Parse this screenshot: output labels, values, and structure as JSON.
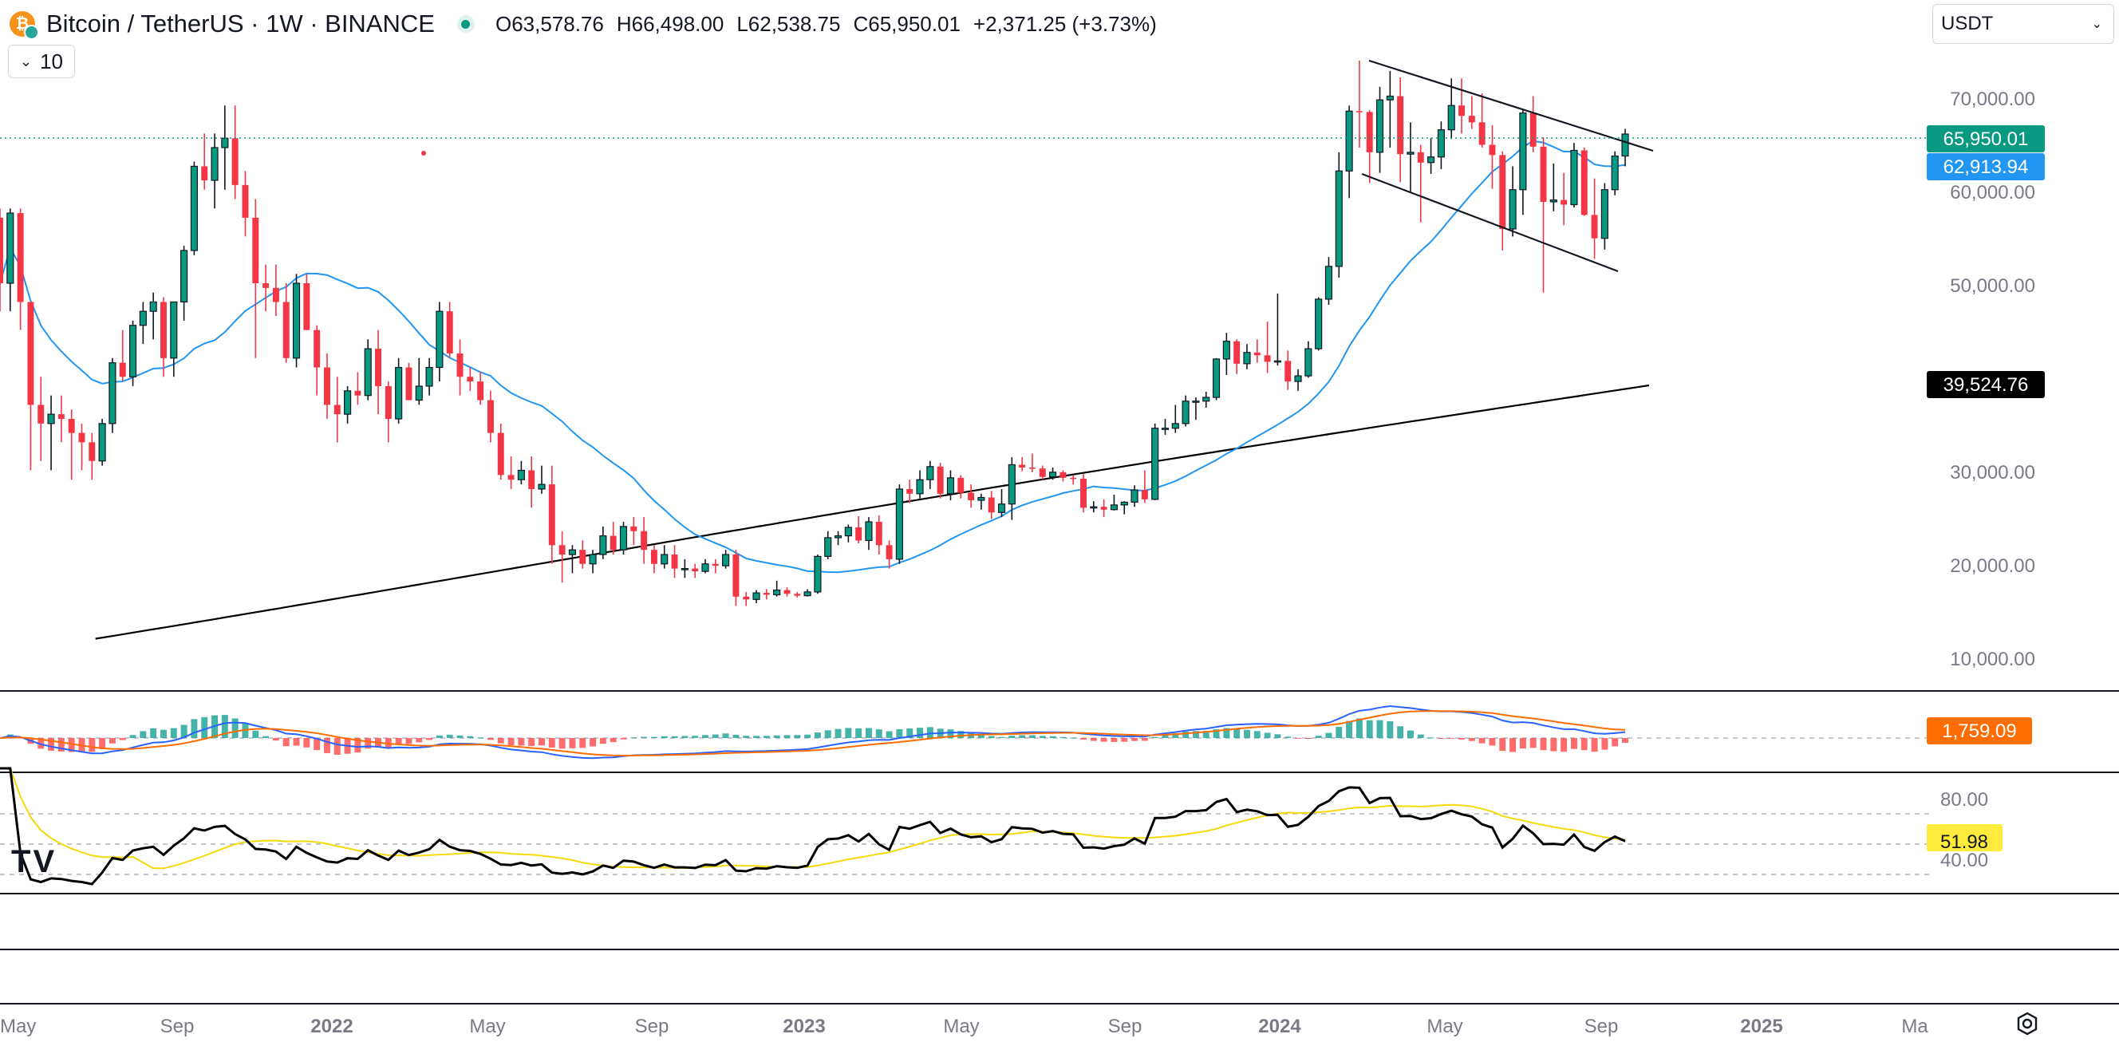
{
  "header": {
    "symbol_title": "Bitcoin / TetherUS · 1W · BINANCE",
    "logo_glyph": "₿",
    "ohlc": [
      {
        "label": "O",
        "value": "63,578.76"
      },
      {
        "label": "H",
        "value": "66,498.00"
      },
      {
        "label": "L",
        "value": "62,538.75"
      },
      {
        "label": "C",
        "value": "65,950.01"
      }
    ],
    "change": "+2,371.25 (+3.73%)",
    "indicator_count": "10",
    "currency": "USDT"
  },
  "badges": {
    "last_price": "65,950.01",
    "sma20": "62,913.94",
    "sma200": "39,524.76",
    "macd": "1,759.09",
    "rsi": "51.98"
  },
  "colors": {
    "up": "#089981",
    "down": "#f23645",
    "sma20": "#2196f3",
    "sma200": "#000000",
    "macd_line": "#2962ff",
    "signal_line": "#ff6d00",
    "rsi_line": "#000000",
    "rsi_ma": "#f5d90a",
    "last_badge": "#089981",
    "sma20_badge": "#2196f3",
    "macd_badge": "#ff6d00",
    "rsi_badge": "#ffeb3b"
  },
  "chart_data": {
    "type": "candlestick",
    "symbol": "BTC/USDT",
    "interval": "1W",
    "price_axis": {
      "ticks": [
        "70,000.00",
        "60,000.00",
        "50,000.00",
        "30,000.00",
        "20,000.00",
        "10,000.00"
      ],
      "ylim": [
        5000,
        76000
      ]
    },
    "time_axis": [
      "May",
      "Sep",
      "2022",
      "May",
      "Sep",
      "2023",
      "May",
      "Sep",
      "2024",
      "May",
      "Sep",
      "2025",
      "Ma"
    ],
    "candles_approx": [
      [
        57000,
        58000,
        47000,
        50000
      ],
      [
        50000,
        58000,
        47000,
        57500
      ],
      [
        57500,
        58000,
        45000,
        48000
      ],
      [
        48000,
        48000,
        30000,
        37000
      ],
      [
        37000,
        40000,
        31000,
        35000
      ],
      [
        35000,
        38000,
        30000,
        36000
      ],
      [
        36000,
        38000,
        33000,
        35500
      ],
      [
        35500,
        36500,
        29000,
        34000
      ],
      [
        34000,
        35000,
        30000,
        33000
      ],
      [
        33000,
        34000,
        29000,
        31000
      ],
      [
        31000,
        35500,
        30500,
        35000
      ],
      [
        35000,
        42000,
        34000,
        41500
      ],
      [
        41500,
        45000,
        39500,
        40000
      ],
      [
        40000,
        46000,
        39000,
        45500
      ],
      [
        45500,
        48000,
        43500,
        47000
      ],
      [
        47000,
        49000,
        44000,
        48000
      ],
      [
        48000,
        48500,
        40000,
        42000
      ],
      [
        42000,
        48000,
        40000,
        48000
      ],
      [
        48000,
        54000,
        46000,
        53500
      ],
      [
        53500,
        63000,
        53000,
        62500
      ],
      [
        62500,
        66000,
        60000,
        61000
      ],
      [
        61000,
        66000,
        58000,
        64500
      ],
      [
        64500,
        69000,
        60000,
        65500
      ],
      [
        65500,
        69000,
        59000,
        60500
      ],
      [
        60500,
        62000,
        55000,
        57000
      ],
      [
        57000,
        59000,
        42000,
        50000
      ],
      [
        50000,
        52000,
        47000,
        49500
      ],
      [
        49500,
        52000,
        46500,
        48000
      ],
      [
        48000,
        50000,
        41500,
        42000
      ],
      [
        42000,
        51000,
        41000,
        50000
      ],
      [
        50000,
        51000,
        45000,
        45000
      ],
      [
        45000,
        45500,
        38000,
        41000
      ],
      [
        41000,
        42500,
        35500,
        37000
      ],
      [
        37000,
        40000,
        33000,
        36000
      ],
      [
        36000,
        39000,
        35000,
        38500
      ],
      [
        38500,
        40500,
        37000,
        38000
      ],
      [
        38000,
        44000,
        37500,
        43000
      ],
      [
        43000,
        45000,
        36000,
        39000
      ],
      [
        39000,
        39500,
        33000,
        35500
      ],
      [
        35500,
        42000,
        35000,
        41000
      ],
      [
        41000,
        41500,
        37500,
        37500
      ],
      [
        37500,
        42000,
        37000,
        39000
      ],
      [
        39000,
        42000,
        38000,
        41000
      ],
      [
        41000,
        48000,
        39500,
        47000
      ],
      [
        47000,
        48000,
        42000,
        42500
      ],
      [
        42500,
        44000,
        38000,
        40000
      ],
      [
        40000,
        41000,
        38500,
        39500
      ],
      [
        39500,
        40500,
        37000,
        37500
      ],
      [
        37500,
        38500,
        33000,
        34000
      ],
      [
        34000,
        35000,
        29000,
        29500
      ],
      [
        29500,
        31500,
        28000,
        29000
      ],
      [
        29000,
        31000,
        28500,
        30000
      ],
      [
        30000,
        31500,
        26000,
        28000
      ],
      [
        28000,
        30500,
        27500,
        28500
      ],
      [
        28500,
        30500,
        20000,
        22000
      ],
      [
        22000,
        23500,
        18000,
        21000
      ],
      [
        21000,
        22000,
        19000,
        21500
      ],
      [
        21500,
        22500,
        19500,
        20000
      ],
      [
        20000,
        21500,
        19000,
        21000
      ],
      [
        21000,
        24000,
        20500,
        23000
      ],
      [
        23000,
        24500,
        21000,
        21500
      ],
      [
        21500,
        24500,
        21000,
        24000
      ],
      [
        24000,
        25000,
        22000,
        23500
      ],
      [
        23500,
        25000,
        20000,
        21500
      ],
      [
        21500,
        22000,
        19000,
        20000
      ],
      [
        20000,
        22000,
        19500,
        21000
      ],
      [
        21000,
        22000,
        18500,
        19500
      ],
      [
        19500,
        20500,
        18500,
        19500
      ],
      [
        19500,
        20000,
        18500,
        19200
      ],
      [
        19200,
        20500,
        19000,
        20000
      ],
      [
        20000,
        20500,
        19000,
        19800
      ],
      [
        19800,
        21500,
        19500,
        21000
      ],
      [
        21000,
        21500,
        15500,
        16500
      ],
      [
        16500,
        17000,
        15500,
        16200
      ],
      [
        16200,
        17200,
        15800,
        16900
      ],
      [
        16900,
        17300,
        16200,
        16700
      ],
      [
        16700,
        18200,
        16500,
        17200
      ],
      [
        17200,
        17500,
        16500,
        16800
      ],
      [
        16800,
        17000,
        16400,
        16600
      ],
      [
        16600,
        17300,
        16500,
        17000
      ],
      [
        17000,
        21000,
        16800,
        20800
      ],
      [
        20800,
        23500,
        20500,
        22800
      ],
      [
        22800,
        23500,
        22000,
        23000
      ],
      [
        23000,
        24200,
        22300,
        23900
      ],
      [
        23900,
        25100,
        22200,
        22500
      ],
      [
        22500,
        25000,
        21500,
        24500
      ],
      [
        24500,
        25200,
        21000,
        22000
      ],
      [
        22000,
        22500,
        19500,
        20500
      ],
      [
        20500,
        28500,
        20000,
        28000
      ],
      [
        28000,
        29000,
        26500,
        27500
      ],
      [
        27500,
        30000,
        27000,
        29000
      ],
      [
        29000,
        31000,
        28000,
        30400
      ],
      [
        30400,
        30800,
        27000,
        27500
      ],
      [
        27500,
        30000,
        26800,
        29200
      ],
      [
        29200,
        29500,
        27000,
        27600
      ],
      [
        27600,
        28500,
        26000,
        26800
      ],
      [
        26800,
        27500,
        25800,
        27100
      ],
      [
        27100,
        27800,
        24800,
        25500
      ],
      [
        25500,
        28000,
        25000,
        26400
      ],
      [
        26400,
        31400,
        24700,
        30600
      ],
      [
        30600,
        31400,
        29900,
        30300
      ],
      [
        30300,
        31800,
        29800,
        30200
      ],
      [
        30200,
        30500,
        29000,
        29300
      ],
      [
        29300,
        30300,
        29000,
        29800
      ],
      [
        29800,
        30000,
        28800,
        29200
      ],
      [
        29200,
        29500,
        28500,
        29100
      ],
      [
        29100,
        29600,
        25500,
        26000
      ],
      [
        26000,
        26700,
        25500,
        26100
      ],
      [
        26100,
        26900,
        25000,
        25800
      ],
      [
        25800,
        27400,
        25700,
        26300
      ],
      [
        26300,
        26700,
        25300,
        26600
      ],
      [
        26600,
        28400,
        26100,
        27900
      ],
      [
        27900,
        30000,
        26500,
        26900
      ],
      [
        26900,
        35000,
        26800,
        34500
      ],
      [
        34500,
        35500,
        33800,
        34500
      ],
      [
        34500,
        37000,
        34000,
        35000
      ],
      [
        35000,
        38000,
        34700,
        37400
      ],
      [
        37400,
        37800,
        35400,
        37400
      ],
      [
        37400,
        38400,
        36700,
        37800
      ],
      [
        37800,
        42000,
        37500,
        41900
      ],
      [
        41900,
        44700,
        40200,
        43800
      ],
      [
        43800,
        44000,
        40300,
        41400
      ],
      [
        41400,
        43500,
        40800,
        42600
      ],
      [
        42600,
        44000,
        41500,
        42300
      ],
      [
        42300,
        45900,
        40400,
        41600
      ],
      [
        41600,
        48900,
        41200,
        41700
      ],
      [
        41700,
        42800,
        38600,
        39500
      ],
      [
        39500,
        40800,
        38500,
        40100
      ],
      [
        40100,
        43800,
        39900,
        43000
      ],
      [
        43000,
        48500,
        42800,
        48300
      ],
      [
        48300,
        52800,
        47700,
        51800
      ],
      [
        51800,
        64000,
        50600,
        62000
      ],
      [
        62000,
        69000,
        59100,
        68400
      ],
      [
        68400,
        73800,
        64500,
        68300
      ],
      [
        68300,
        68500,
        60700,
        64000
      ],
      [
        64000,
        71000,
        61800,
        69600
      ],
      [
        69600,
        72700,
        64500,
        70000
      ],
      [
        70000,
        72000,
        60800,
        63800
      ],
      [
        63800,
        67200,
        59700,
        64000
      ],
      [
        64000,
        64800,
        56500,
        62900
      ],
      [
        62900,
        65500,
        61700,
        63500
      ],
      [
        63500,
        67300,
        62200,
        66400
      ],
      [
        66400,
        71900,
        65400,
        69000
      ],
      [
        69000,
        71900,
        66000,
        67900
      ],
      [
        67900,
        70000,
        66500,
        67200
      ],
      [
        67200,
        70300,
        64500,
        64800
      ],
      [
        64800,
        66900,
        60100,
        63700
      ],
      [
        63700,
        64100,
        53500,
        55800
      ],
      [
        55800,
        62500,
        55000,
        60000
      ],
      [
        60000,
        68500,
        57300,
        68200
      ],
      [
        68200,
        70000,
        64000,
        64600
      ],
      [
        64600,
        65600,
        49000,
        58700
      ],
      [
        58700,
        62800,
        57700,
        58900
      ],
      [
        58900,
        61800,
        56200,
        58400
      ],
      [
        58400,
        65000,
        58100,
        64200
      ],
      [
        64200,
        64500,
        57200,
        57300
      ],
      [
        57300,
        61200,
        52600,
        54800
      ],
      [
        54800,
        60700,
        53600,
        60000
      ],
      [
        60000,
        64100,
        59400,
        63600
      ],
      [
        63600,
        66500,
        62500,
        65950
      ]
    ],
    "sma20_last": 62913.94,
    "sma200_last": 39524.76,
    "macd": {
      "value": 1759.09
    },
    "rsi": {
      "value": 51.98,
      "levels": [
        "80.00",
        "40.00"
      ]
    }
  }
}
